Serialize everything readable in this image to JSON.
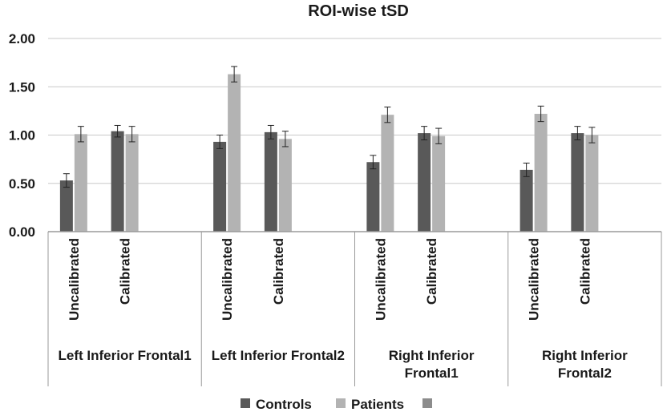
{
  "chart_data": {
    "type": "bar",
    "title": "ROI-wise tSD",
    "xlabel": "",
    "ylabel": "",
    "ylim": [
      0,
      2.0
    ],
    "yticks": [
      "0.00",
      "0.50",
      "1.00",
      "1.50",
      "2.00"
    ],
    "grid": true,
    "legend_position": "bottom",
    "groups": [
      {
        "label": "Left Inferior Frontal1",
        "label_lines": [
          "Left Inferior Frontal1"
        ],
        "subcategories": [
          "Uncalibrated",
          "Calibrated"
        ]
      },
      {
        "label": "Left Inferior Frontal2",
        "label_lines": [
          "Left Inferior Frontal2"
        ],
        "subcategories": [
          "Uncalibrated",
          "Calibrated"
        ]
      },
      {
        "label": "Right Inferior Frontal1",
        "label_lines": [
          "Right Inferior",
          "Frontal1"
        ],
        "subcategories": [
          "Uncalibrated",
          "Calibrated"
        ]
      },
      {
        "label": "Right Inferior Frontal2",
        "label_lines": [
          "Right Inferior",
          "Frontal2"
        ],
        "subcategories": [
          "Uncalibrated",
          "Calibrated"
        ]
      }
    ],
    "series": [
      {
        "name": "Controls",
        "color": "#595959",
        "values": [
          0.53,
          1.04,
          0.93,
          1.03,
          0.72,
          1.02,
          0.64,
          1.02
        ],
        "errors": [
          0.07,
          0.06,
          0.07,
          0.07,
          0.07,
          0.07,
          0.07,
          0.07
        ]
      },
      {
        "name": "Patients",
        "color": "#b3b3b3",
        "values": [
          1.01,
          1.01,
          1.63,
          0.96,
          1.21,
          0.99,
          1.22,
          1.0
        ],
        "errors": [
          0.08,
          0.08,
          0.08,
          0.08,
          0.08,
          0.08,
          0.08,
          0.08
        ]
      },
      {
        "name": "",
        "color": "#8c8c8c",
        "values": [],
        "errors": []
      }
    ]
  }
}
